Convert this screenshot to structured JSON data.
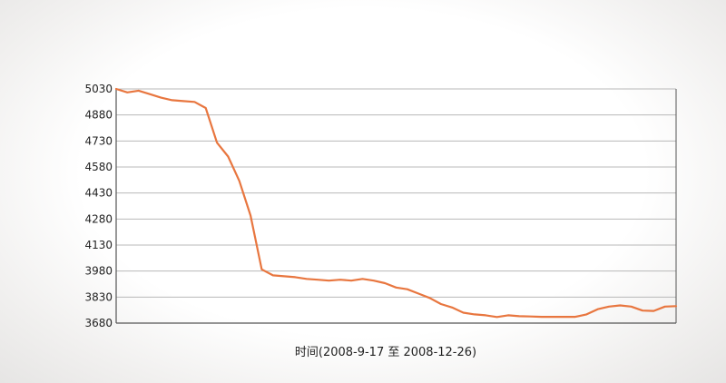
{
  "chart_data": {
    "type": "line",
    "title": "",
    "xlabel": "时间(2008-9-17 至 2008-12-26)",
    "ylabel": "",
    "ylim": [
      3680,
      5030
    ],
    "yticks": [
      5030,
      4880,
      4730,
      4580,
      4430,
      4280,
      4130,
      3980,
      3830,
      3680
    ],
    "grid": true,
    "line_color": "#e8763f",
    "x": [
      0,
      2,
      4,
      6,
      8,
      10,
      12,
      14,
      16,
      18,
      20,
      22,
      24,
      26,
      28,
      30,
      32,
      34,
      36,
      38,
      40,
      42,
      44,
      46,
      48,
      50,
      52,
      54,
      56,
      58,
      60,
      62,
      64,
      66,
      68,
      70,
      72,
      74,
      76,
      78,
      80,
      82,
      84,
      86,
      88,
      90,
      92,
      94,
      96,
      98,
      100
    ],
    "values": [
      5030,
      5010,
      5020,
      5000,
      4980,
      4965,
      4960,
      4955,
      4920,
      4720,
      4640,
      4500,
      4300,
      3990,
      3955,
      3950,
      3945,
      3935,
      3930,
      3925,
      3930,
      3925,
      3935,
      3925,
      3910,
      3885,
      3875,
      3850,
      3825,
      3790,
      3770,
      3740,
      3730,
      3725,
      3715,
      3725,
      3720,
      3718,
      3716,
      3716,
      3716,
      3716,
      3730,
      3760,
      3775,
      3782,
      3775,
      3752,
      3750,
      3775,
      3778
    ]
  }
}
